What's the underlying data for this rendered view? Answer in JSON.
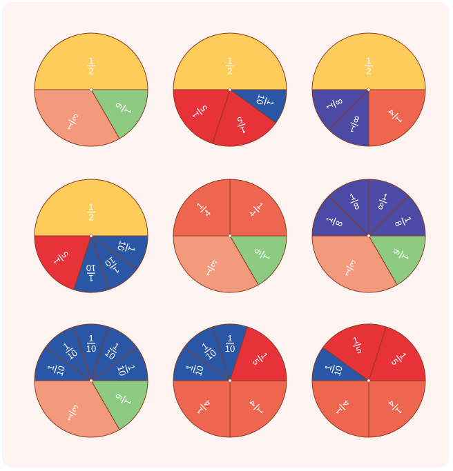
{
  "colors": {
    "background": "#fdf3f1",
    "stroke": "#8a3a1e",
    "label": "#ffffff",
    "half": "#fdcc5b",
    "third": "#f39a7c",
    "quarter": "#ef6650",
    "fifth": "#e8323a",
    "sixth": "#8ecb82",
    "eighth": "#4b4aa4",
    "tenth": "#2a56a6"
  },
  "circles": [
    {
      "name": "circle-1",
      "slices": [
        {
          "den": 2
        },
        {
          "den": 6
        },
        {
          "den": 3
        }
      ]
    },
    {
      "name": "circle-2",
      "slices": [
        {
          "den": 2
        },
        {
          "den": 10
        },
        {
          "den": 5
        },
        {
          "den": 5
        }
      ]
    },
    {
      "name": "circle-3",
      "slices": [
        {
          "den": 2
        },
        {
          "den": 4
        },
        {
          "den": 8
        },
        {
          "den": 8
        }
      ]
    },
    {
      "name": "circle-4",
      "slices": [
        {
          "den": 2
        },
        {
          "den": 10
        },
        {
          "den": 10
        },
        {
          "den": 10
        },
        {
          "den": 5
        }
      ]
    },
    {
      "name": "circle-5",
      "slices": [
        {
          "den": 4
        },
        {
          "den": 4
        },
        {
          "den": 6
        },
        {
          "den": 3
        }
      ]
    },
    {
      "name": "circle-6",
      "slices": [
        {
          "den": 8
        },
        {
          "den": 8
        },
        {
          "den": 8
        },
        {
          "den": 8
        },
        {
          "den": 6
        },
        {
          "den": 3
        }
      ]
    },
    {
      "name": "circle-7",
      "slices": [
        {
          "den": 10
        },
        {
          "den": 10
        },
        {
          "den": 10
        },
        {
          "den": 10
        },
        {
          "den": 10
        },
        {
          "den": 6
        },
        {
          "den": 3
        }
      ]
    },
    {
      "name": "circle-8",
      "slices": [
        {
          "den": 10
        },
        {
          "den": 10
        },
        {
          "den": 10
        },
        {
          "den": 5
        },
        {
          "den": 4
        },
        {
          "den": 4
        }
      ]
    },
    {
      "name": "circle-9",
      "slices": [
        {
          "den": 10
        },
        {
          "den": 5
        },
        {
          "den": 5
        },
        {
          "den": 4
        },
        {
          "den": 4
        }
      ]
    }
  ]
}
